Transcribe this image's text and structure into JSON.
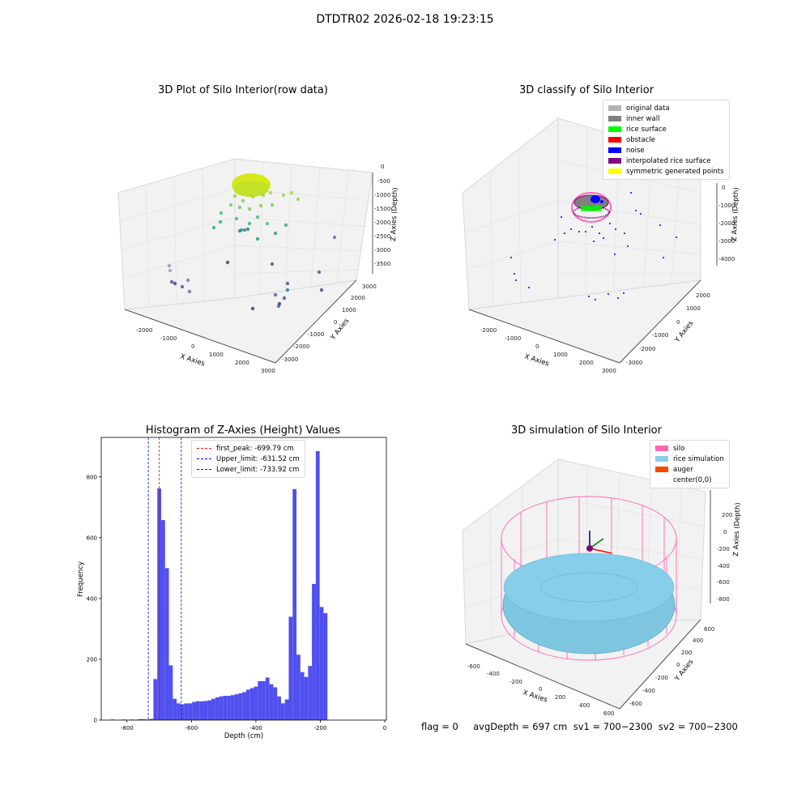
{
  "suptitle": "DTDTR02 2026-02-18 19:23:15",
  "footer": "flag = 0     avgDepth = 697 cm  sv1 = 700~2300  sv2 = 700~2300",
  "colors": {
    "original": "#b3b3b3",
    "inner_wall": "#808080",
    "rice_surface": "#00ff00",
    "obstacle": "#ff0000",
    "noise": "#0000ff",
    "interpolated": "#800080",
    "symmetric": "#ffff00",
    "silo": "#ff69b4",
    "rice_sim": "#87ceeb",
    "auger": "#ff4500",
    "hist_bar": "#5050f0"
  },
  "plots": {
    "raw": {
      "title": "3D Plot of Silo Interior(row data)",
      "xlabel": "X Axies",
      "ylabel": "Y Axies",
      "zlabel": "Z Axies (Depth)",
      "xticks": [
        "-2000",
        "-1000",
        "0",
        "1000",
        "2000",
        "3000"
      ],
      "yticks": [
        "-3000",
        "-2000",
        "-1000",
        "0",
        "1000",
        "2000",
        "3000"
      ],
      "zticks": [
        "0",
        "-500",
        "-1000",
        "-1500",
        "-2000",
        "-2500",
        "-3000",
        "-3500"
      ]
    },
    "classify": {
      "title": "3D classify of Silo Interior",
      "xlabel": "X Axies",
      "ylabel": "Y Axies",
      "zlabel": "Z Axies (Depth)",
      "xticks": [
        "-2000",
        "-1000",
        "0",
        "1000",
        "2000",
        "3000"
      ],
      "yticks": [
        "-3000",
        "-2000",
        "-1000",
        "0",
        "1000",
        "2000"
      ],
      "zticks": [
        "0",
        "-1000",
        "-2000",
        "-3000",
        "-4000"
      ],
      "legend": [
        {
          "label": "original data",
          "color": "#b3b3b3"
        },
        {
          "label": "inner wall",
          "color": "#808080"
        },
        {
          "label": "rice surface",
          "color": "#00ff00"
        },
        {
          "label": "obstacle",
          "color": "#ff0000"
        },
        {
          "label": "noise",
          "color": "#0000ff"
        },
        {
          "label": "interpolated rice surface",
          "color": "#800080"
        },
        {
          "label": "symmetric generated points",
          "color": "#ffff00"
        }
      ]
    },
    "simulation": {
      "title": "3D simulation of Silo Interior",
      "xlabel": "X Axies",
      "ylabel": "Y Axies",
      "zlabel": "Z Axies (Depth)",
      "xticks": [
        "-600",
        "-400",
        "-200",
        "0",
        "200",
        "400",
        "600"
      ],
      "yticks": [
        "-600",
        "-400",
        "-200",
        "0",
        "200",
        "400",
        "600"
      ],
      "zticks": [
        "200",
        "0",
        "-200",
        "-400",
        "-600",
        "-800"
      ],
      "legend": [
        {
          "label": "silo",
          "color": "#ff69b4"
        },
        {
          "label": "rice simulation",
          "color": "#87ceeb"
        },
        {
          "label": "auger",
          "color": "#ff4500"
        },
        {
          "label": "center(0,0)",
          "color": ""
        }
      ]
    }
  },
  "chart_data": {
    "type": "bar",
    "title": "Histogram of Z-Axies (Height) Values",
    "xlabel": "Depth (cm)",
    "ylabel": "Frequency",
    "xlim": [
      -880,
      5
    ],
    "ylim": [
      0,
      930
    ],
    "xticks": [
      -800,
      -600,
      -400,
      -200,
      0
    ],
    "yticks": [
      0,
      200,
      400,
      600,
      800
    ],
    "bin_width": 12,
    "bins": [
      {
        "x": -850,
        "v": 2
      },
      {
        "x": -826,
        "v": 1
      },
      {
        "x": -814,
        "v": 2
      },
      {
        "x": -790,
        "v": 2
      },
      {
        "x": -778,
        "v": 1
      },
      {
        "x": -766,
        "v": 3
      },
      {
        "x": -754,
        "v": 3
      },
      {
        "x": -742,
        "v": 2
      },
      {
        "x": -730,
        "v": 4
      },
      {
        "x": -718,
        "v": 135
      },
      {
        "x": -706,
        "v": 762
      },
      {
        "x": -694,
        "v": 658
      },
      {
        "x": -682,
        "v": 500
      },
      {
        "x": -670,
        "v": 180
      },
      {
        "x": -658,
        "v": 70
      },
      {
        "x": -646,
        "v": 55
      },
      {
        "x": -634,
        "v": 52
      },
      {
        "x": -622,
        "v": 55
      },
      {
        "x": -610,
        "v": 55
      },
      {
        "x": -598,
        "v": 60
      },
      {
        "x": -586,
        "v": 62
      },
      {
        "x": -574,
        "v": 62
      },
      {
        "x": -562,
        "v": 63
      },
      {
        "x": -550,
        "v": 65
      },
      {
        "x": -538,
        "v": 70
      },
      {
        "x": -526,
        "v": 75
      },
      {
        "x": -514,
        "v": 78
      },
      {
        "x": -502,
        "v": 80
      },
      {
        "x": -490,
        "v": 80
      },
      {
        "x": -478,
        "v": 82
      },
      {
        "x": -466,
        "v": 85
      },
      {
        "x": -454,
        "v": 88
      },
      {
        "x": -442,
        "v": 92
      },
      {
        "x": -430,
        "v": 100
      },
      {
        "x": -418,
        "v": 105
      },
      {
        "x": -406,
        "v": 110
      },
      {
        "x": -394,
        "v": 128
      },
      {
        "x": -382,
        "v": 128
      },
      {
        "x": -370,
        "v": 140
      },
      {
        "x": -358,
        "v": 118
      },
      {
        "x": -346,
        "v": 108
      },
      {
        "x": -334,
        "v": 78
      },
      {
        "x": -322,
        "v": 55
      },
      {
        "x": -310,
        "v": 68
      },
      {
        "x": -298,
        "v": 340
      },
      {
        "x": -286,
        "v": 760
      },
      {
        "x": -274,
        "v": 215
      },
      {
        "x": -262,
        "v": 158
      },
      {
        "x": -250,
        "v": 142
      },
      {
        "x": -238,
        "v": 178
      },
      {
        "x": -226,
        "v": 448
      },
      {
        "x": -214,
        "v": 885
      },
      {
        "x": -202,
        "v": 372
      },
      {
        "x": -190,
        "v": 352
      }
    ],
    "vlines": [
      {
        "label": "first_peak: -699.79 cm",
        "x": -699.79,
        "color": "#ff0000"
      },
      {
        "label": "Upper_limit: -631.52 cm",
        "x": -631.52,
        "color": "#0000ff"
      },
      {
        "label": "Lower_limit: -733.92 cm",
        "x": -733.92,
        "color": "#0000ff"
      }
    ]
  }
}
